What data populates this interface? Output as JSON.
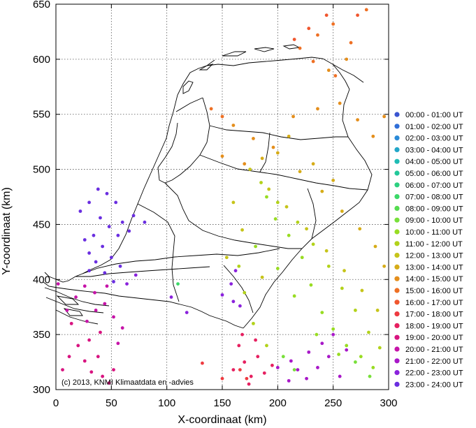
{
  "chart_data": {
    "type": "scatter",
    "title": "",
    "xlabel": "X-coordinaat (km)",
    "ylabel": "Y-coordinaat (km)",
    "xlim": [
      0,
      300
    ],
    "ylim": [
      300,
      650
    ],
    "xticks": [
      0,
      50,
      100,
      150,
      200,
      250,
      300
    ],
    "yticks": [
      300,
      350,
      400,
      450,
      500,
      550,
      600,
      650
    ],
    "grid": true,
    "legend_position": "right",
    "credit": "(c) 2013, KNMI Klimaatdata en -advies",
    "series": [
      {
        "name": "00:00 - 01:00 UT",
        "color": "#3a55d0",
        "points": []
      },
      {
        "name": "01:00 - 02:00 UT",
        "color": "#2f6ed8",
        "points": []
      },
      {
        "name": "02:00 - 03:00 UT",
        "color": "#2a8ad8",
        "points": []
      },
      {
        "name": "03:00 - 04:00 UT",
        "color": "#22a6c8",
        "points": []
      },
      {
        "name": "04:00 - 05:00 UT",
        "color": "#1fbcb4",
        "points": []
      },
      {
        "name": "05:00 - 06:00 UT",
        "color": "#22c89a",
        "points": []
      },
      {
        "name": "06:00 - 07:00 UT",
        "color": "#2dd080",
        "points": []
      },
      {
        "name": "07:00 - 08:00 UT",
        "color": "#3cd868",
        "points": [
          [
            110,
            396
          ]
        ]
      },
      {
        "name": "08:00 - 09:00 UT",
        "color": "#55dc50",
        "points": []
      },
      {
        "name": "09:00 - 10:00 UT",
        "color": "#78e03a",
        "points": [
          [
            205,
            330
          ],
          [
            215,
            318
          ],
          [
            283,
            312
          ],
          [
            270,
            325
          ]
        ]
      },
      {
        "name": "10:00 - 11:00 UT",
        "color": "#98dc22",
        "points": [
          [
            190,
            475
          ],
          [
            198,
            455
          ],
          [
            210,
            440
          ],
          [
            222,
            420
          ],
          [
            230,
            395
          ],
          [
            240,
            370
          ],
          [
            250,
            355
          ],
          [
            262,
            340
          ],
          [
            275,
            330
          ],
          [
            286,
            320
          ],
          [
            200,
            410
          ],
          [
            215,
            385
          ],
          [
            235,
            350
          ],
          [
            255,
            332
          ],
          [
            180,
            430
          ]
        ]
      },
      {
        "name": "11:00 - 12:00 UT",
        "color": "#b2d21a",
        "points": [
          [
            185,
            488
          ],
          [
            200,
            470
          ],
          [
            218,
            452
          ],
          [
            232,
            432
          ],
          [
            246,
            412
          ],
          [
            258,
            392
          ],
          [
            270,
            372
          ],
          [
            282,
            352
          ],
          [
            292,
            338
          ],
          [
            165,
            412
          ],
          [
            170,
            388
          ],
          [
            178,
            360
          ],
          [
            190,
            340
          ]
        ]
      },
      {
        "name": "12:00 - 13:00 UT",
        "color": "#c6c41a",
        "points": [
          [
            175,
            500
          ],
          [
            192,
            482
          ],
          [
            208,
            466
          ],
          [
            226,
            446
          ],
          [
            244,
            426
          ],
          [
            260,
            408
          ],
          [
            276,
            390
          ],
          [
            290,
            372
          ],
          [
            160,
            470
          ],
          [
            168,
            445
          ],
          [
            154,
            420
          ],
          [
            186,
            402
          ]
        ]
      },
      {
        "name": "13:00 - 14:00 UT",
        "color": "#d6ac18",
        "points": [
          [
            200,
            515
          ],
          [
            220,
            498
          ],
          [
            240,
            480
          ],
          [
            258,
            462
          ],
          [
            274,
            446
          ],
          [
            288,
            430
          ],
          [
            296,
            412
          ],
          [
            186,
            510
          ],
          [
            210,
            530
          ],
          [
            232,
            505
          ],
          [
            250,
            490
          ]
        ]
      },
      {
        "name": "14:00 - 15:00 UT",
        "color": "#e48e1c",
        "points": [
          [
            160,
            540
          ],
          [
            178,
            528
          ],
          [
            196,
            520
          ],
          [
            214,
            548
          ],
          [
            236,
            555
          ],
          [
            256,
            560
          ],
          [
            272,
            545
          ],
          [
            286,
            530
          ],
          [
            296,
            548
          ],
          [
            150,
            512
          ],
          [
            170,
            505
          ],
          [
            246,
            590
          ],
          [
            262,
            600
          ]
        ]
      },
      {
        "name": "15:00 - 16:00 UT",
        "color": "#ee7024",
        "points": [
          [
            220,
            610
          ],
          [
            236,
            622
          ],
          [
            250,
            632
          ],
          [
            266,
            615
          ],
          [
            280,
            645
          ],
          [
            232,
            598
          ],
          [
            252,
            585
          ],
          [
            150,
            548
          ],
          [
            140,
            555
          ]
        ]
      },
      {
        "name": "16:00 - 17:00 UT",
        "color": "#f0562e",
        "points": [
          [
            228,
            628
          ],
          [
            244,
            640
          ],
          [
            215,
            618
          ],
          [
            272,
            640
          ]
        ]
      },
      {
        "name": "17:00 - 18:00 UT",
        "color": "#ee3a40",
        "points": [
          [
            132,
            324
          ],
          [
            150,
            310
          ],
          [
            166,
            318
          ],
          [
            172,
            310
          ]
        ]
      },
      {
        "name": "18:00 - 19:00 UT",
        "color": "#e62060",
        "points": [
          [
            165,
            340
          ],
          [
            170,
            325
          ],
          [
            176,
            312
          ],
          [
            160,
            318
          ],
          [
            182,
            330
          ],
          [
            188,
            315
          ],
          [
            195,
            322
          ],
          [
            168,
            350
          ],
          [
            174,
            305
          ],
          [
            180,
            345
          ]
        ]
      },
      {
        "name": "19:00 - 20:00 UT",
        "color": "#d81480",
        "points": [
          [
            6,
            318
          ],
          [
            12,
            330
          ],
          [
            20,
            340
          ],
          [
            26,
            326
          ],
          [
            32,
            316
          ],
          [
            38,
            330
          ],
          [
            42,
            312
          ],
          [
            48,
            306
          ],
          [
            30,
            345
          ],
          [
            40,
            352
          ],
          [
            14,
            360
          ],
          [
            52,
            318
          ]
        ]
      },
      {
        "name": "20:00 - 21:00 UT",
        "color": "#c614a8",
        "points": [
          [
            10,
            372
          ],
          [
            18,
            384
          ],
          [
            26,
            394
          ],
          [
            35,
            388
          ],
          [
            44,
            378
          ],
          [
            52,
            366
          ],
          [
            60,
            356
          ],
          [
            36,
            372
          ],
          [
            28,
            362
          ],
          [
            46,
            394
          ],
          [
            2,
            396
          ],
          [
            56,
            342
          ]
        ]
      },
      {
        "name": "21:00 - 22:00 UT",
        "color": "#a818c8",
        "points": [
          [
            200,
            320
          ],
          [
            210,
            308
          ],
          [
            218,
            318
          ],
          [
            226,
            310
          ],
          [
            236,
            320
          ],
          [
            246,
            330
          ],
          [
            256,
            312
          ],
          [
            240,
            342
          ],
          [
            228,
            334
          ],
          [
            212,
            326
          ],
          [
            250,
            350
          ],
          [
            262,
            336
          ]
        ]
      },
      {
        "name": "22:00 - 23:00 UT",
        "color": "#8a22dc",
        "points": [
          [
            150,
            386
          ],
          [
            158,
            396
          ],
          [
            162,
            408
          ],
          [
            160,
            380
          ],
          [
            166,
            376
          ],
          [
            104,
            384
          ],
          [
            118,
            370
          ],
          [
            72,
            404
          ],
          [
            64,
            396
          ]
        ]
      },
      {
        "name": "23:00 - 24:00 UT",
        "color": "#6a2ee0",
        "points": [
          [
            22,
            462
          ],
          [
            30,
            470
          ],
          [
            38,
            482
          ],
          [
            46,
            478
          ],
          [
            54,
            470
          ],
          [
            40,
            456
          ],
          [
            48,
            448
          ],
          [
            56,
            440
          ],
          [
            34,
            440
          ],
          [
            42,
            430
          ],
          [
            50,
            420
          ],
          [
            58,
            412
          ],
          [
            36,
            416
          ],
          [
            44,
            406
          ],
          [
            52,
            398
          ],
          [
            30,
            424
          ],
          [
            60,
            452
          ],
          [
            70,
            458
          ],
          [
            80,
            452
          ],
          [
            66,
            444
          ],
          [
            26,
            436
          ],
          [
            30,
            408
          ]
        ]
      }
    ]
  }
}
